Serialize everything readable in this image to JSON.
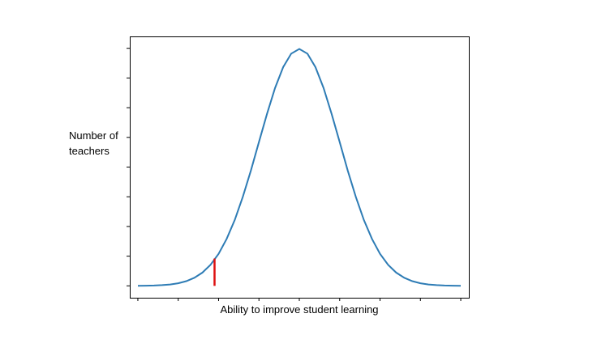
{
  "chart_data": {
    "type": "line",
    "title": "",
    "xlabel": "Ability to improve student learning",
    "ylabel": "Number of\nteachers",
    "x_tick_labels": [],
    "y_tick_labels": [],
    "grid": false,
    "legend": "none",
    "xlim": [
      -4.2,
      4.2
    ],
    "ylim": [
      -0.02,
      0.42
    ],
    "series": [
      {
        "color": "#2e7cb5",
        "x": [
          -4.0,
          -3.8,
          -3.6,
          -3.4,
          -3.2,
          -3.0,
          -2.8,
          -2.6,
          -2.4,
          -2.2,
          -2.0,
          -1.8,
          -1.6,
          -1.4,
          -1.2,
          -1.0,
          -0.8,
          -0.6,
          -0.4,
          -0.2,
          0.0,
          0.2,
          0.4,
          0.6,
          0.8,
          1.0,
          1.2,
          1.4,
          1.6,
          1.8,
          2.0,
          2.2,
          2.4,
          2.6,
          2.8,
          3.0,
          3.2,
          3.4,
          3.6,
          3.8,
          4.0
        ],
        "y": [
          0.0001,
          0.0003,
          0.0006,
          0.0012,
          0.0024,
          0.0044,
          0.0079,
          0.0136,
          0.0224,
          0.0355,
          0.054,
          0.079,
          0.1109,
          0.1497,
          0.1942,
          0.242,
          0.2897,
          0.3332,
          0.3683,
          0.391,
          0.3989,
          0.391,
          0.3683,
          0.3332,
          0.2897,
          0.242,
          0.1942,
          0.1497,
          0.1109,
          0.079,
          0.054,
          0.0355,
          0.0224,
          0.0136,
          0.0079,
          0.0044,
          0.0024,
          0.0012,
          0.0006,
          0.0003,
          0.0001
        ]
      }
    ],
    "marker": {
      "x": -2.1,
      "y": 0.046,
      "color": "#dd1111"
    }
  }
}
